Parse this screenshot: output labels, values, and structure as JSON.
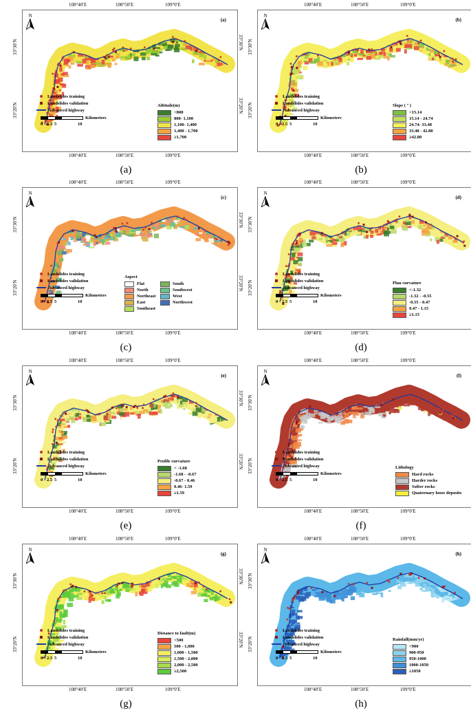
{
  "axes": {
    "top_ticks": [
      "108°40′E",
      "108°50′E",
      "109°0′E"
    ],
    "bottom_ticks": [
      "108°40′E",
      "108°50′E",
      "109°0′E"
    ],
    "left_ticks": [
      "33°30′N",
      "33°20′N"
    ],
    "right_ticks": [
      "33°30′N",
      "33°20′N"
    ]
  },
  "north_label": "N",
  "common_legend": {
    "training": "Landslides training",
    "validation": "Landslides validation",
    "highway": "Advanced highway"
  },
  "scalebar": {
    "unit": "Kilometers",
    "ticks": [
      "0",
      "2.5",
      "5",
      "10"
    ]
  },
  "panels": [
    {
      "id": "a",
      "label": "(a)",
      "caption": "(a)",
      "legend_title": "Altitude(m)",
      "classes": [
        {
          "label": "<800",
          "color": "#3a7d2c"
        },
        {
          "label": "800- 1,100",
          "color": "#9acd32"
        },
        {
          "label": "1,100- 1,400",
          "color": "#f2e34b"
        },
        {
          "label": "1,400 - 1,700",
          "color": "#f5a442"
        },
        {
          "label": "≥1,700",
          "color": "#e8453c"
        }
      ]
    },
    {
      "id": "b",
      "label": "(b)",
      "caption": "(b)",
      "legend_title": "Slope ( ° )",
      "classes": [
        {
          "label": "<15.14",
          "color": "#7cc144"
        },
        {
          "label": "15.14 - 24.74",
          "color": "#c5e05a"
        },
        {
          "label": "24.74- 33.48",
          "color": "#f5ee60"
        },
        {
          "label": "33.48 - 42.80",
          "color": "#f5a442"
        },
        {
          "label": "≥42.80",
          "color": "#e8453c"
        }
      ]
    },
    {
      "id": "c",
      "label": "(c)",
      "caption": "(c)",
      "legend_title": "Aspect",
      "classes": [
        {
          "label": "Flat",
          "color": "#ffffff"
        },
        {
          "label": "North",
          "color": "#f08a7a"
        },
        {
          "label": "Northeast",
          "color": "#f29a4a"
        },
        {
          "label": "East",
          "color": "#d9b24a"
        },
        {
          "label": "Southeast",
          "color": "#b7e05a"
        },
        {
          "label": "South",
          "color": "#7cb55a"
        },
        {
          "label": "Southwest",
          "color": "#6ac08a"
        },
        {
          "label": "West",
          "color": "#60b8c8"
        },
        {
          "label": "Northwest",
          "color": "#3f6fb8"
        }
      ]
    },
    {
      "id": "d",
      "label": "(d)",
      "caption": "(d)",
      "legend_title": "Plan  curvature",
      "classes": [
        {
          "label": "<-1.32",
          "color": "#3a7d2c"
        },
        {
          "label": "-1.32 - -0.55",
          "color": "#b8d96a"
        },
        {
          "label": "-0.55 - 0.47",
          "color": "#f5ee80"
        },
        {
          "label": "0.47 - 1.15",
          "color": "#f5a442"
        },
        {
          "label": "≥1.15",
          "color": "#e8453c"
        }
      ]
    },
    {
      "id": "e",
      "label": "(e)",
      "caption": "(e)",
      "legend_title": "Profile  curvature",
      "classes": [
        {
          "label": "< -1.68",
          "color": "#3a7d2c"
        },
        {
          "label": "-1.68 - -0.67",
          "color": "#b8d96a"
        },
        {
          "label": "-0.67 - 0.46",
          "color": "#f5ee80"
        },
        {
          "label": "0.46- 1.59",
          "color": "#f5a442"
        },
        {
          "label": "≥1.59",
          "color": "#e8453c"
        }
      ]
    },
    {
      "id": "f",
      "label": "(f)",
      "caption": "(f)",
      "legend_title": "Lithology",
      "classes": [
        {
          "label": "Hard rocks",
          "color": "#f08a4a"
        },
        {
          "label": "Harder rocks",
          "color": "#c8c8c8"
        },
        {
          "label": "Softer rocks",
          "color": "#b03a2e"
        },
        {
          "label": "Quaternary loose deposits",
          "color": "#f5ee40"
        }
      ]
    },
    {
      "id": "g",
      "label": "(g)",
      "caption": "(g)",
      "legend_title": "Distance  to  fault(m)",
      "classes": [
        {
          "label": "<500",
          "color": "#e8453c"
        },
        {
          "label": "500 - 1,000",
          "color": "#f5a442"
        },
        {
          "label": "1,000 - 1,500",
          "color": "#f5ee60"
        },
        {
          "label": "1,500 - 2,000",
          "color": "#d6ec5a"
        },
        {
          "label": "2,000 - 2,500",
          "color": "#a8dc4a"
        },
        {
          "label": "≥2,500",
          "color": "#5ccb3a"
        }
      ]
    },
    {
      "id": "h",
      "label": "(h)",
      "caption": "(h)",
      "legend_title": "Rainfall(mm/yr)",
      "classes": [
        {
          "label": "<900",
          "color": "#b8e6f2"
        },
        {
          "label": "900-950",
          "color": "#8fd2ee"
        },
        {
          "label": "950-1000",
          "color": "#5cb8e8"
        },
        {
          "label": "1000-1050",
          "color": "#3f8fd8"
        },
        {
          "label": "≥1050",
          "color": "#2a5fb8"
        }
      ]
    }
  ]
}
